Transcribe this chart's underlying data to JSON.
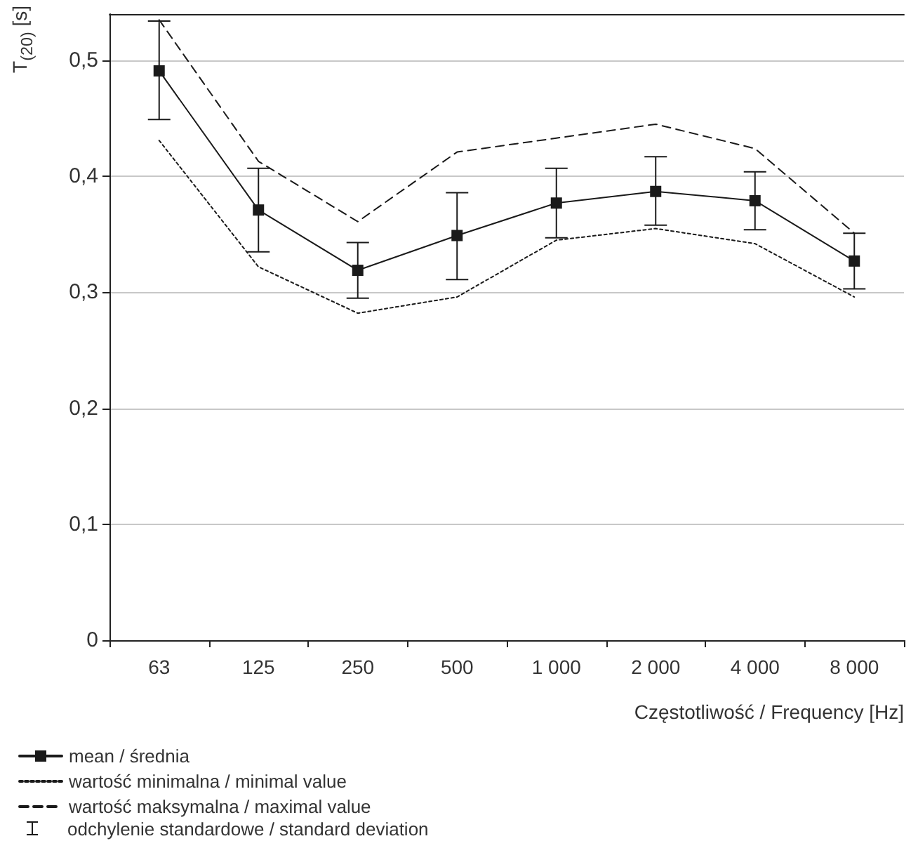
{
  "chart_data": {
    "type": "line",
    "xlabel": "Częstotliwość / Frequency [Hz]",
    "ylabel": "T$_{(20)}$ [s]",
    "categories": [
      "63",
      "125",
      "250",
      "500",
      "1 000",
      "2 000",
      "4 000",
      "8 000"
    ],
    "series": [
      {
        "name": "mean / średnia",
        "color": "#1a1a1a",
        "marker": "square",
        "line_style": "solid",
        "values": [
          0.491,
          0.371,
          0.319,
          0.349,
          0.377,
          0.387,
          0.379,
          0.327
        ],
        "errors": [
          [
            0.449,
            0.534
          ],
          [
            0.335,
            0.407
          ],
          [
            0.295,
            0.343
          ],
          [
            0.311,
            0.386
          ],
          [
            0.347,
            0.407
          ],
          [
            0.358,
            0.417
          ],
          [
            0.354,
            0.404
          ],
          [
            0.303,
            0.351
          ]
        ]
      },
      {
        "name": "wartość minimalna / minimal value",
        "color": "#1a1a1a",
        "marker": "none",
        "line_style": "dotted",
        "values": [
          0.431,
          0.322,
          0.282,
          0.296,
          0.345,
          0.355,
          0.342,
          0.296
        ]
      },
      {
        "name": "wartość maksymalna / maximal value",
        "color": "#1a1a1a",
        "marker": "none",
        "line_style": "dashed",
        "values": [
          0.535,
          0.413,
          0.361,
          0.421,
          0.433,
          0.445,
          0.424,
          0.351
        ]
      }
    ],
    "annotations": [
      "odchylenie standardowe / standard deviation"
    ],
    "ylim": [
      0,
      0.54
    ],
    "yticks": [
      {
        "value": 0,
        "label": "0"
      },
      {
        "value": 0.1,
        "label": "0,1"
      },
      {
        "value": 0.2,
        "label": "0,2"
      },
      {
        "value": 0.3,
        "label": "0,3"
      },
      {
        "value": 0.4,
        "label": "0,4"
      },
      {
        "value": 0.5,
        "label": "0,5"
      }
    ],
    "grid": "y",
    "legend": "bottom left"
  }
}
